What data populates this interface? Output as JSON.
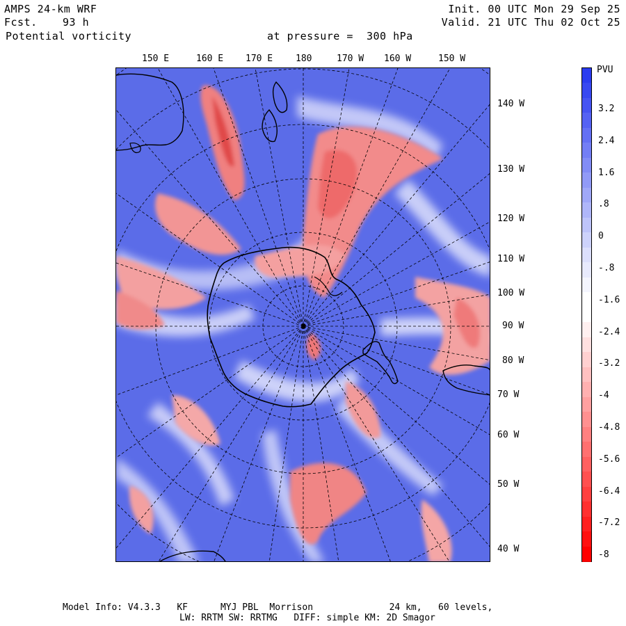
{
  "header": {
    "model": "AMPS 24-km WRF",
    "fcst_label": "Fcst.",
    "fcst_value": "93 h",
    "field": "Potential vorticity",
    "pressure": "at pressure =  300 hPa",
    "init": "Init. 00 UTC Mon 29 Sep 25",
    "valid": "Valid. 21 UTC Thu 02 Oct 25"
  },
  "top_ticks": [
    "150 E",
    "160 E",
    "170 E",
    "180",
    "170 W",
    "160 W",
    "150 W"
  ],
  "right_ticks": [
    "140 W",
    "130 W",
    "120 W",
    "110 W",
    "100 W",
    "90 W",
    "80 W",
    "70 W",
    "60 W",
    "50 W",
    "40 W"
  ],
  "colorbar": {
    "unit": "PVU",
    "labels": [
      "3.2",
      "2.4",
      "1.6",
      ".8",
      "0",
      "-.8",
      "-1.6",
      "-2.4",
      "-3.2",
      "-4",
      "-4.8",
      "-5.6",
      "-6.4",
      "-7.2",
      "-8"
    ],
    "colors": [
      "#2b3cf0",
      "#3848f1",
      "#4654f2",
      "#5562f3",
      "#6470f4",
      "#737ef5",
      "#828cf6",
      "#919af7",
      "#a0a8f8",
      "#afb6f9",
      "#bec4fa",
      "#cdd2fb",
      "#dcdffc",
      "#e8eafd",
      "#f4f5fe",
      "#ffffff",
      "#ffffff",
      "#fff0f0",
      "#ffe0e0",
      "#ffd0d0",
      "#ffc0c0",
      "#ffb0b0",
      "#ffa0a0",
      "#ff9090",
      "#ff8080",
      "#ff7070",
      "#ff6060",
      "#ff5050",
      "#ff4040",
      "#ff3030",
      "#ff2020",
      "#ff1010",
      "#ff0000"
    ]
  },
  "footer": {
    "line1": "Model Info: V4.3.3   KF      MYJ PBL  Morrison              24 km,   60 levels,",
    "line2": "LW: RRTM SW: RRTMG   DIFF: simple KM: 2D Smagor"
  }
}
